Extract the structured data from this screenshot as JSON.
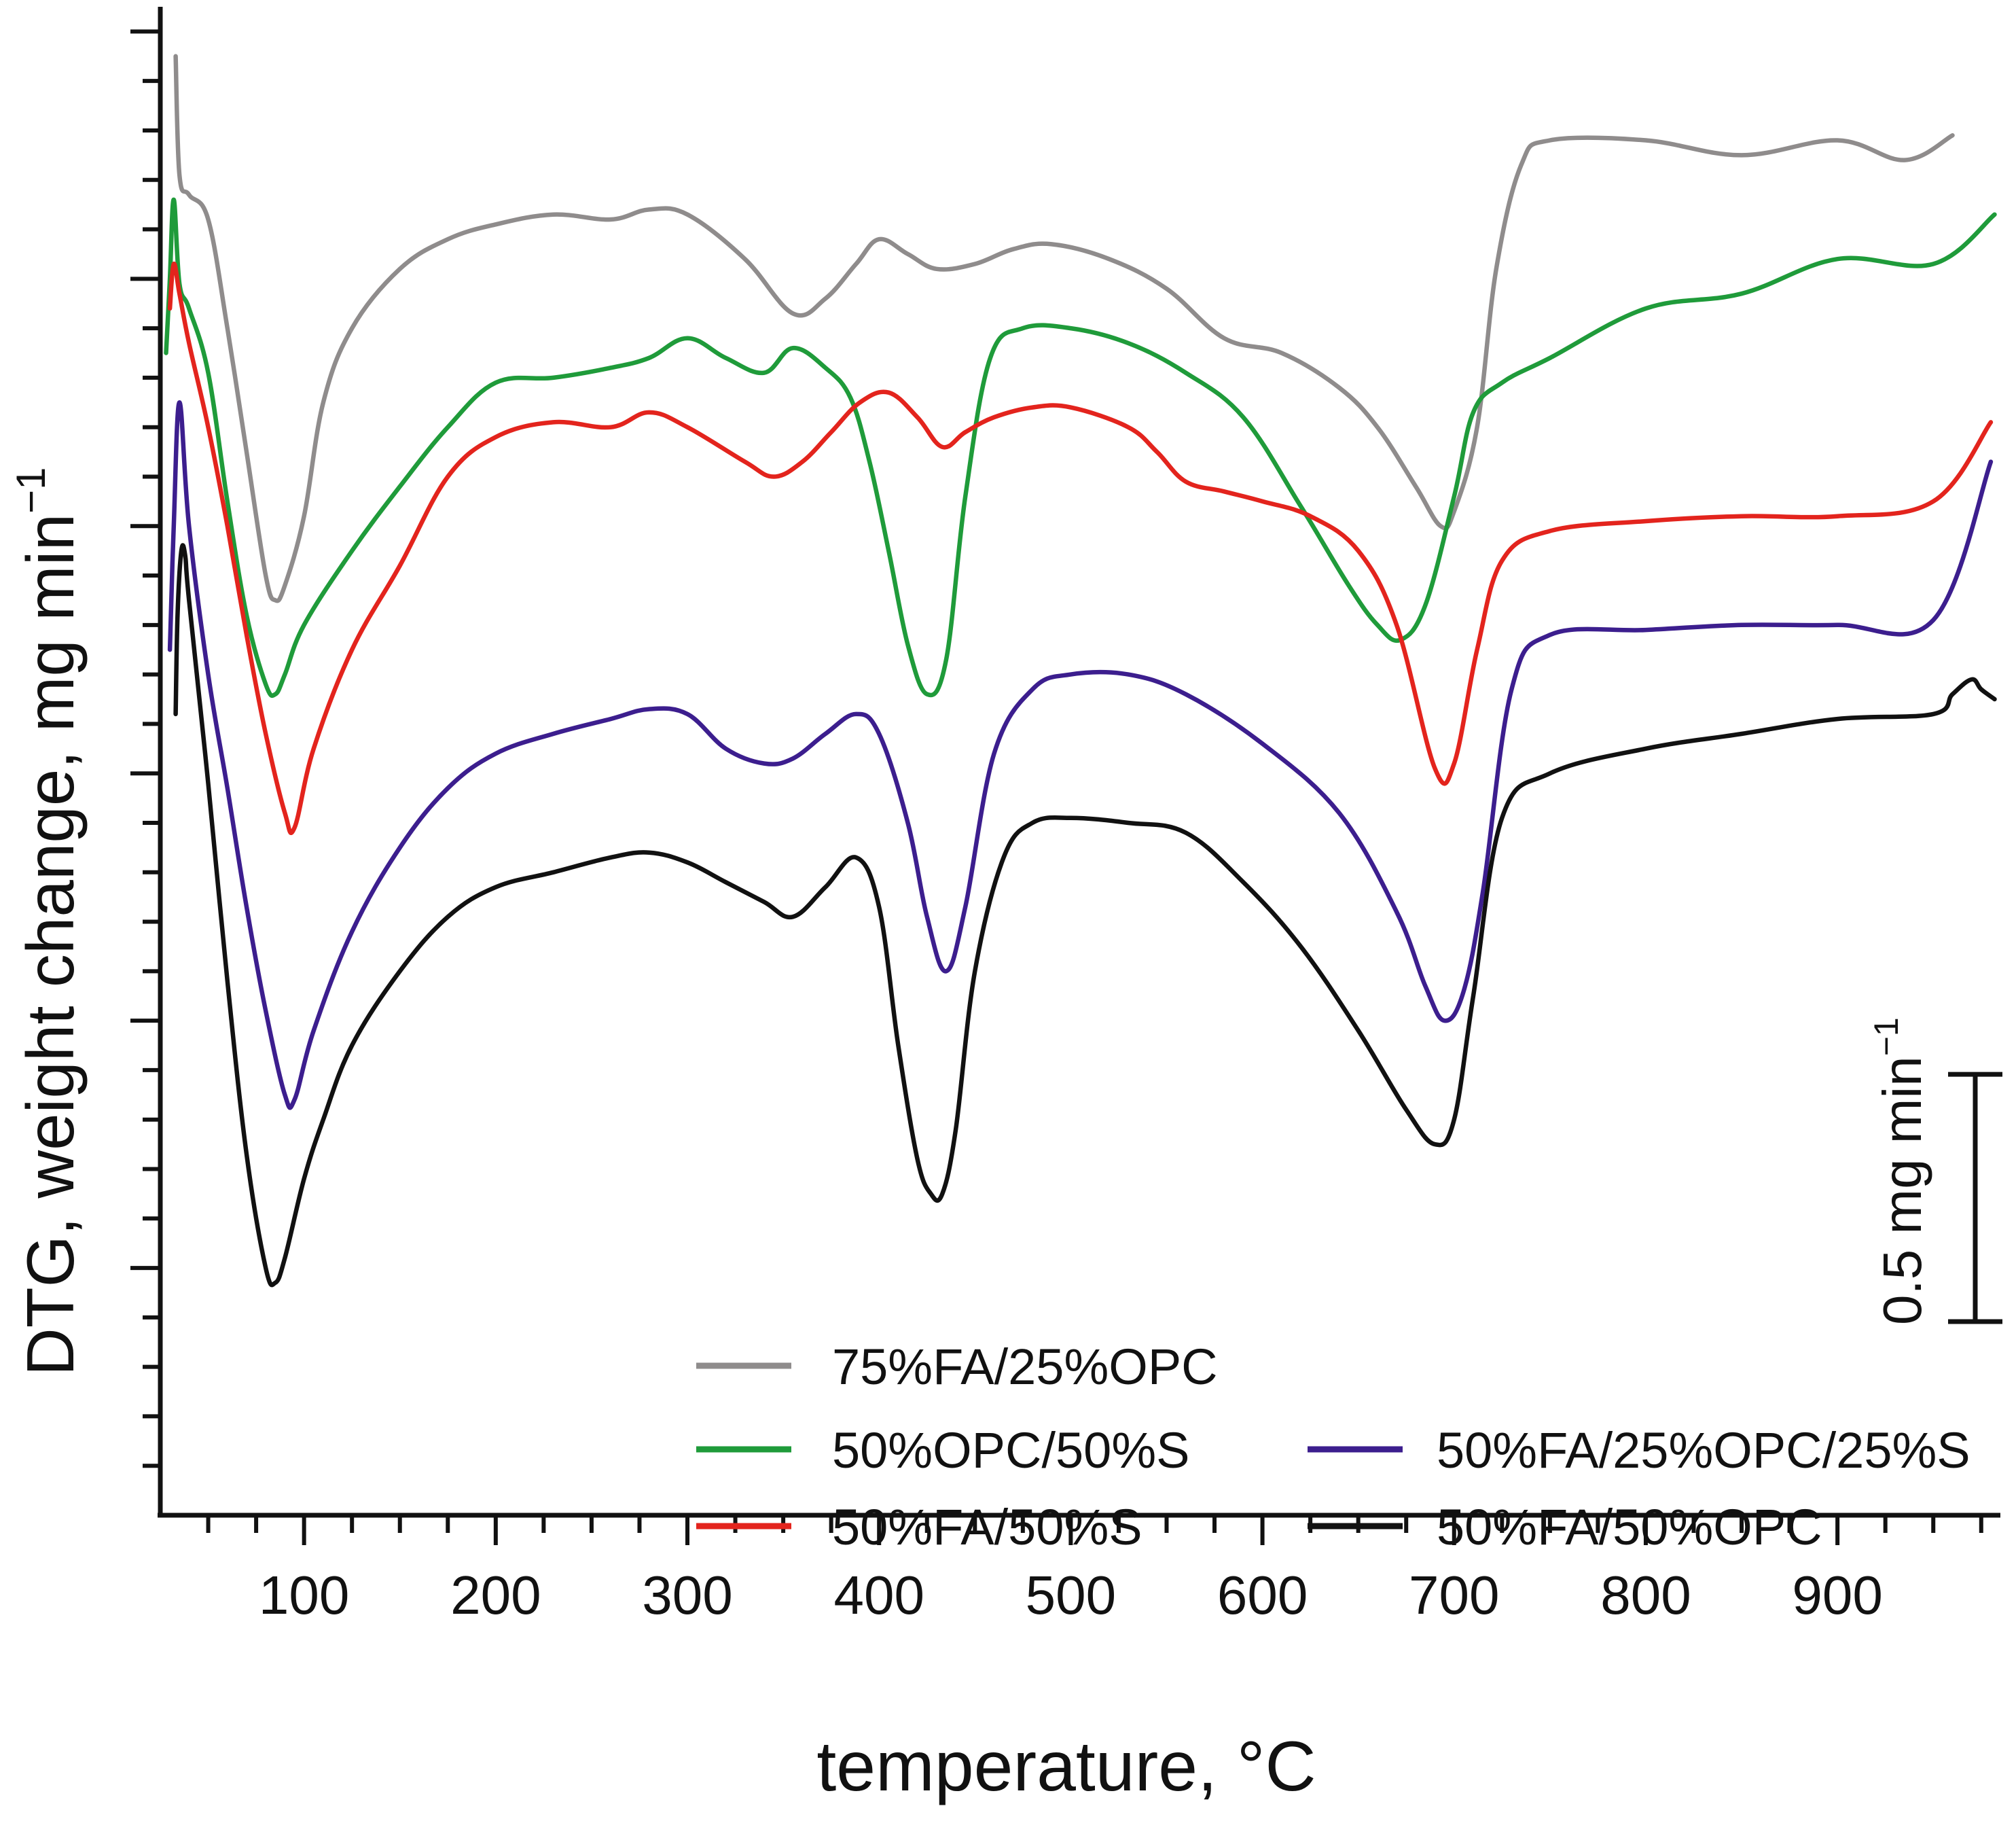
{
  "chart_data": {
    "type": "line",
    "title": "",
    "xlabel": "temperature, °C",
    "ylabel": "DTG, weight change, mg min",
    "ylabel_superscript": "−1",
    "xlim": [
      25,
      985
    ],
    "ylim": [
      0,
      30.5
    ],
    "x_ticks": [
      100,
      200,
      300,
      400,
      500,
      600,
      700,
      800,
      900
    ],
    "x_tick_labels": [
      "100",
      "200",
      "300",
      "400",
      "500",
      "600",
      "700",
      "800",
      "900"
    ],
    "y_unit_note": "arbitrary offset scale; 1 data unit = 0.1 mg min−1 (see scale bar)",
    "scale_bar": {
      "label": "0.5 mg min",
      "label_superscript": "−1",
      "value": 0.5,
      "length_data_units": 5
    },
    "legend": {
      "position": "lower-center",
      "entries": [
        "75%FA/25%OPC",
        "50%OPC/50%S",
        "50%FA/25%OPC/25%S",
        "50%FA/50%S",
        "50%FA/50%OPC"
      ]
    },
    "series": [
      {
        "name": "75%FA/25%OPC",
        "color": "#8f8c8c",
        "x": [
          33,
          35,
          40,
          50,
          60,
          70,
          80,
          85,
          90,
          100,
          110,
          125,
          150,
          175,
          200,
          230,
          260,
          280,
          300,
          330,
          355,
          372,
          388,
          400,
          415,
          430,
          450,
          470,
          490,
          520,
          550,
          580,
          610,
          640,
          660,
          680,
          693,
          700,
          712,
          722,
          735,
          750,
          800,
          850,
          900,
          935,
          960
        ],
        "y": [
          29.5,
          27.1,
          26.7,
          26.2,
          24.0,
          21.5,
          19.0,
          18.5,
          18.8,
          20.2,
          22.5,
          24.0,
          25.2,
          25.8,
          26.1,
          26.3,
          26.2,
          26.4,
          26.3,
          25.4,
          24.3,
          24.6,
          25.3,
          25.8,
          25.5,
          25.2,
          25.3,
          25.6,
          25.7,
          25.4,
          24.8,
          23.8,
          23.5,
          22.8,
          22.0,
          20.8,
          20.0,
          20.3,
          22.0,
          25.2,
          27.3,
          27.8,
          27.8,
          27.5,
          27.8,
          27.4,
          27.9
        ]
      },
      {
        "name": "50%OPC/50%S",
        "color": "#1f9b3a",
        "x": [
          28,
          30,
          32,
          35,
          40,
          50,
          60,
          70,
          80,
          85,
          90,
          100,
          125,
          150,
          175,
          200,
          230,
          260,
          280,
          300,
          320,
          340,
          355,
          372,
          385,
          395,
          405,
          415,
          425,
          435,
          445,
          458,
          475,
          500,
          530,
          560,
          590,
          620,
          645,
          660,
          672,
          685,
          700,
          710,
          725,
          750,
          800,
          850,
          900,
          950,
          982
        ],
        "y": [
          23.5,
          25.0,
          26.6,
          24.9,
          24.4,
          23.1,
          20.5,
          18.2,
          16.8,
          16.6,
          17.0,
          18.0,
          19.5,
          20.8,
          22.0,
          22.9,
          23.0,
          23.2,
          23.4,
          23.8,
          23.4,
          23.1,
          23.6,
          23.2,
          22.6,
          21.3,
          19.5,
          17.6,
          16.6,
          17.3,
          20.6,
          23.4,
          24.0,
          24.0,
          23.7,
          23.1,
          22.2,
          20.4,
          18.8,
          18.0,
          17.7,
          18.4,
          20.6,
          22.3,
          22.9,
          23.4,
          24.4,
          24.7,
          25.4,
          25.3,
          26.3
        ]
      },
      {
        "name": "50%FA/50%S",
        "color": "#e3241d",
        "x": [
          30,
          32,
          35,
          40,
          50,
          60,
          70,
          80,
          90,
          95,
          105,
          125,
          150,
          175,
          200,
          230,
          260,
          280,
          300,
          330,
          345,
          360,
          375,
          390,
          405,
          420,
          433,
          445,
          460,
          480,
          500,
          530,
          545,
          560,
          580,
          600,
          625,
          650,
          670,
          690,
          700,
          712,
          725,
          750,
          800,
          850,
          900,
          950,
          980
        ],
        "y": [
          24.4,
          25.3,
          24.7,
          23.7,
          22.0,
          20.0,
          17.8,
          15.8,
          14.2,
          13.9,
          15.5,
          17.5,
          19.2,
          21.0,
          21.8,
          22.1,
          22.0,
          22.3,
          22.0,
          21.3,
          21.0,
          21.3,
          21.9,
          22.5,
          22.7,
          22.2,
          21.6,
          21.9,
          22.2,
          22.4,
          22.4,
          22.0,
          21.5,
          20.9,
          20.7,
          20.5,
          20.2,
          19.5,
          18.0,
          15.1,
          15.2,
          17.5,
          19.3,
          19.9,
          20.1,
          20.2,
          20.2,
          20.5,
          22.1
        ]
      },
      {
        "name": "50%FA/25%OPC/25%S",
        "color": "#3c1e8e",
        "x": [
          30,
          32,
          35,
          40,
          50,
          60,
          70,
          80,
          90,
          95,
          105,
          125,
          150,
          175,
          200,
          230,
          260,
          280,
          300,
          320,
          340,
          355,
          372,
          388,
          400,
          415,
          425,
          435,
          445,
          460,
          480,
          500,
          530,
          560,
          600,
          640,
          670,
          685,
          695,
          705,
          715,
          730,
          750,
          800,
          850,
          900,
          950,
          980
        ],
        "y": [
          17.5,
          20.0,
          22.5,
          20.0,
          17.0,
          14.7,
          12.3,
          10.2,
          8.5,
          8.4,
          9.8,
          11.8,
          13.5,
          14.7,
          15.4,
          15.8,
          16.1,
          16.3,
          16.2,
          15.5,
          15.2,
          15.3,
          15.8,
          16.2,
          15.8,
          14.0,
          12.1,
          11.0,
          12.3,
          15.4,
          16.7,
          17.0,
          17.0,
          16.6,
          15.6,
          14.2,
          12.2,
          10.7,
          10.0,
          10.6,
          12.6,
          16.7,
          17.8,
          17.9,
          18.0,
          18.0,
          18.1,
          21.3
        ]
      },
      {
        "name": "50%FA/50%OPC",
        "color": "#111111",
        "x": [
          33,
          34,
          36,
          38,
          40,
          50,
          60,
          70,
          80,
          85,
          90,
          100,
          110,
          125,
          150,
          175,
          200,
          230,
          260,
          280,
          300,
          320,
          340,
          355,
          372,
          388,
          400,
          410,
          420,
          427,
          433,
          440,
          450,
          465,
          480,
          500,
          530,
          560,
          590,
          620,
          650,
          675,
          690,
          700,
          710,
          725,
          750,
          800,
          850,
          900,
          950,
          960,
          970,
          975,
          982
        ],
        "y": [
          16.2,
          18.2,
          19.5,
          19.4,
          18.5,
          14.8,
          10.8,
          7.3,
          5.0,
          4.7,
          5.2,
          6.8,
          8.0,
          9.5,
          11.0,
          12.1,
          12.7,
          13.0,
          13.3,
          13.4,
          13.2,
          12.8,
          12.4,
          12.1,
          12.7,
          13.3,
          12.3,
          9.5,
          7.2,
          6.5,
          6.5,
          7.8,
          11.0,
          13.3,
          14.0,
          14.1,
          14.0,
          13.8,
          12.8,
          11.5,
          9.8,
          8.2,
          7.5,
          8.0,
          10.5,
          14.1,
          15.0,
          15.5,
          15.8,
          16.1,
          16.2,
          16.6,
          16.9,
          16.7,
          16.5
        ]
      }
    ]
  }
}
